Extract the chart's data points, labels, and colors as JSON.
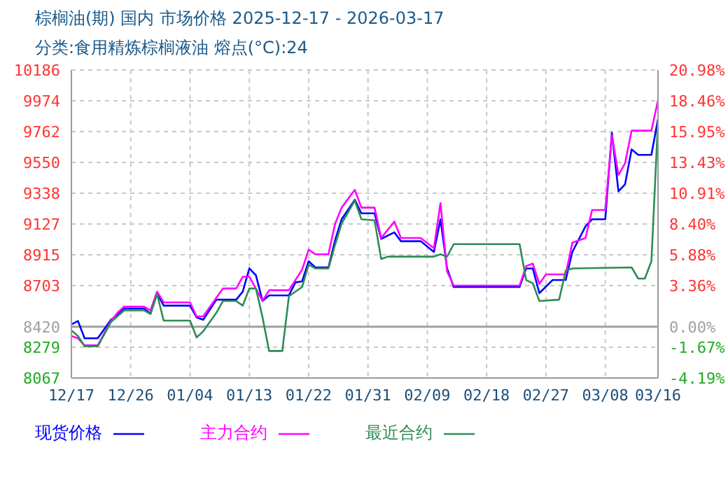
{
  "chart_data": {
    "type": "line",
    "title": "棕榈油(期) 国内 市场价格 2025-12-17 - 2026-03-17",
    "subtitle": "分类:食用精炼棕榈液油 熔点(°C):24",
    "xlim": [
      "2025-12-17",
      "2026-03-16"
    ],
    "xticks": [
      {
        "value": "2025-12-17",
        "label": "12/17"
      },
      {
        "value": "2025-12-26",
        "label": "12/26"
      },
      {
        "value": "2026-01-04",
        "label": "01/04"
      },
      {
        "value": "2026-01-13",
        "label": "01/13"
      },
      {
        "value": "2026-01-22",
        "label": "01/22"
      },
      {
        "value": "2026-01-31",
        "label": "01/31"
      },
      {
        "value": "2026-02-09",
        "label": "02/09"
      },
      {
        "value": "2026-02-18",
        "label": "02/18"
      },
      {
        "value": "2026-02-27",
        "label": "02/27"
      },
      {
        "value": "2026-03-08",
        "label": "03/08"
      },
      {
        "value": "2026-03-16",
        "label": "03/16"
      }
    ],
    "ylim": [
      8067,
      10186
    ],
    "yticks": [
      8067,
      8279,
      8420,
      8703,
      8915,
      9127,
      9338,
      9550,
      9762,
      9974,
      10186
    ],
    "y2lim": [
      -4.19,
      20.98
    ],
    "y2ticks": [
      {
        "value": -4.19,
        "label": "-4.19%"
      },
      {
        "value": -1.67,
        "label": "-1.67%"
      },
      {
        "value": 0,
        "label": "0.00%"
      },
      {
        "value": 3.36,
        "label": "3.36%"
      },
      {
        "value": 5.88,
        "label": "5.88%"
      },
      {
        "value": 8.4,
        "label": "8.40%"
      },
      {
        "value": 10.91,
        "label": "10.91%"
      },
      {
        "value": 13.43,
        "label": "13.43%"
      },
      {
        "value": 15.95,
        "label": "15.95%"
      },
      {
        "value": 18.46,
        "label": "18.46%"
      },
      {
        "value": 20.98,
        "label": "20.98%"
      }
    ],
    "ref_lines": [
      {
        "axis": "y",
        "value": 8420,
        "color": "#a0a0a0",
        "line_style": "solid"
      }
    ],
    "grid": true,
    "legend": "bottom",
    "marker": "none",
    "line_style": "solid",
    "series": [
      {
        "name": "现货价格",
        "color": "#0000ff",
        "x": [
          "2025-12-17",
          "2025-12-18",
          "2025-12-19",
          "2025-12-21",
          "2025-12-23",
          "2025-12-24",
          "2025-12-25",
          "2025-12-28",
          "2025-12-29",
          "2025-12-30",
          "2025-12-31",
          "2026-01-04",
          "2026-01-05",
          "2026-01-06",
          "2026-01-08",
          "2026-01-11",
          "2026-01-12",
          "2026-01-13",
          "2026-01-14",
          "2026-01-15",
          "2026-01-16",
          "2026-01-19",
          "2026-01-20",
          "2026-01-21",
          "2026-01-22",
          "2026-01-23",
          "2026-01-25",
          "2026-01-26",
          "2026-01-27",
          "2026-01-29",
          "2026-01-30",
          "2026-02-01",
          "2026-02-02",
          "2026-02-04",
          "2026-02-05",
          "2026-02-08",
          "2026-02-10",
          "2026-02-11",
          "2026-02-12",
          "2026-02-13",
          "2026-02-23",
          "2026-02-24",
          "2026-02-25",
          "2026-02-26",
          "2026-02-28",
          "2026-03-02",
          "2026-03-03",
          "2026-03-05",
          "2026-03-06",
          "2026-03-08",
          "2026-03-09",
          "2026-03-10",
          "2026-03-11",
          "2026-03-12",
          "2026-03-13",
          "2026-03-15",
          "2026-03-16"
        ],
        "values": [
          8436,
          8459,
          8340,
          8340,
          8468,
          8500,
          8545,
          8545,
          8510,
          8651,
          8565,
          8565,
          8484,
          8468,
          8606,
          8606,
          8661,
          8821,
          8773,
          8597,
          8635,
          8635,
          8725,
          8732,
          8870,
          8828,
          8828,
          9014,
          9159,
          9293,
          9200,
          9200,
          9024,
          9069,
          9008,
          9008,
          8934,
          9159,
          8821,
          8693,
          8693,
          8821,
          8821,
          8651,
          8741,
          8741,
          8934,
          9110,
          9159,
          9159,
          9753,
          9351,
          9399,
          9640,
          9602,
          9602,
          9849
        ]
      },
      {
        "name": "主力合约",
        "color": "#ff00ff",
        "x": [
          "2025-12-17",
          "2025-12-18",
          "2025-12-19",
          "2025-12-21",
          "2025-12-23",
          "2025-12-24",
          "2025-12-25",
          "2025-12-28",
          "2025-12-29",
          "2025-12-30",
          "2025-12-31",
          "2026-01-04",
          "2026-01-05",
          "2026-01-06",
          "2026-01-09",
          "2026-01-11",
          "2026-01-12",
          "2026-01-13",
          "2026-01-15",
          "2026-01-16",
          "2026-01-19",
          "2026-01-21",
          "2026-01-22",
          "2026-01-23",
          "2026-01-25",
          "2026-01-26",
          "2026-01-27",
          "2026-01-29",
          "2026-01-30",
          "2026-02-01",
          "2026-02-02",
          "2026-02-04",
          "2026-02-05",
          "2026-02-08",
          "2026-02-10",
          "2026-02-11",
          "2026-02-12",
          "2026-02-13",
          "2026-02-23",
          "2026-02-24",
          "2026-02-25",
          "2026-02-26",
          "2026-02-27",
          "2026-03-02",
          "2026-03-03",
          "2026-03-05",
          "2026-03-06",
          "2026-03-08",
          "2026-03-09",
          "2026-03-10",
          "2026-03-11",
          "2026-03-12",
          "2026-03-15",
          "2026-03-16"
        ],
        "values": [
          8356,
          8340,
          8292,
          8292,
          8459,
          8516,
          8558,
          8558,
          8532,
          8661,
          8587,
          8587,
          8491,
          8491,
          8683,
          8683,
          8764,
          8764,
          8597,
          8671,
          8671,
          8812,
          8950,
          8918,
          8918,
          9126,
          9239,
          9361,
          9239,
          9239,
          9030,
          9143,
          9030,
          9030,
          8960,
          9271,
          8800,
          8703,
          8703,
          8837,
          8854,
          8715,
          8780,
          8780,
          8998,
          9030,
          9223,
          9223,
          9737,
          9464,
          9544,
          9769,
          9769,
          9977
        ]
      },
      {
        "name": "最近合约",
        "color": "#2e8b57",
        "x": [
          "2025-12-17",
          "2025-12-18",
          "2025-12-19",
          "2025-12-21",
          "2025-12-23",
          "2025-12-25",
          "2025-12-28",
          "2025-12-29",
          "2025-12-30",
          "2025-12-31",
          "2026-01-04",
          "2026-01-05",
          "2026-01-06",
          "2026-01-08",
          "2026-01-09",
          "2026-01-11",
          "2026-01-12",
          "2026-01-13",
          "2026-01-14",
          "2026-01-15",
          "2026-01-16",
          "2026-01-18",
          "2026-01-19",
          "2026-01-21",
          "2026-01-22",
          "2026-01-23",
          "2026-01-25",
          "2026-01-26",
          "2026-01-27",
          "2026-01-29",
          "2026-01-30",
          "2026-02-01",
          "2026-02-02",
          "2026-02-03",
          "2026-02-10",
          "2026-02-11",
          "2026-02-12",
          "2026-02-13",
          "2026-02-23",
          "2026-02-24",
          "2026-02-25",
          "2026-02-26",
          "2026-03-01",
          "2026-03-02",
          "2026-03-03",
          "2026-03-12",
          "2026-03-13",
          "2026-03-14",
          "2026-03-15",
          "2026-03-16"
        ],
        "values": [
          8394,
          8356,
          8285,
          8285,
          8452,
          8532,
          8532,
          8507,
          8645,
          8462,
          8462,
          8346,
          8388,
          8516,
          8597,
          8597,
          8565,
          8683,
          8683,
          8484,
          8253,
          8253,
          8629,
          8693,
          8847,
          8821,
          8821,
          8982,
          9130,
          9287,
          9159,
          9152,
          8886,
          8902,
          8902,
          8918,
          8902,
          8988,
          8988,
          8741,
          8719,
          8597,
          8606,
          8805,
          8821,
          8828,
          8751,
          8751,
          8870,
          9833
        ]
      }
    ]
  }
}
